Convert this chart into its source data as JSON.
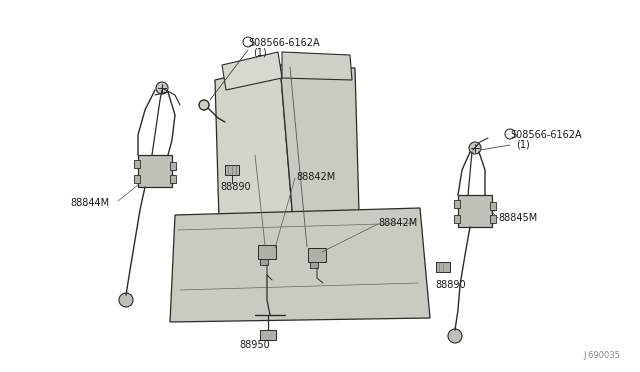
{
  "bg_color": "#f5f5f0",
  "line_color": "#2a2a2a",
  "text_color": "#1a1a1a",
  "label_fontsize": 7,
  "diagram_num": "J 690035",
  "parts": {
    "08566_top": "S08566-6162A\n(1)",
    "08566_right": "S08566-6162A\n(1)",
    "88844M": "88844M",
    "88890_left": "88890",
    "88842M_left": "88842M",
    "88842M_right": "88842M",
    "88890_right": "88890",
    "88845M": "88845M",
    "88950": "88950"
  },
  "seat_back_color": "#d0cfc8",
  "seat_cushion_color": "#c8c7c0",
  "seat_outline_color": "#2a2a2a"
}
